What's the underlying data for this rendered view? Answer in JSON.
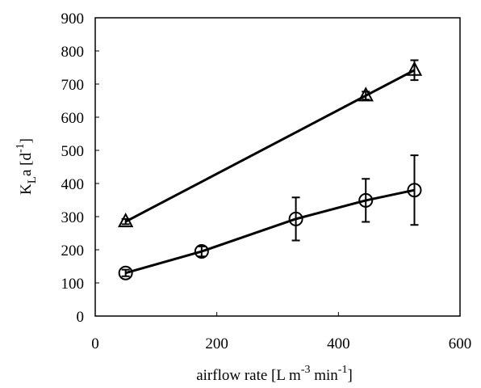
{
  "chart_data": {
    "type": "scatter",
    "x_label": {
      "text": "airflow rate [L m",
      "sup1": "-3",
      "mid": " min",
      "sup2": "-1",
      "end": "]"
    },
    "y_label": {
      "text": "K",
      "sub": "L",
      "mid": "a [d",
      "sup": "-1",
      "end": "]"
    },
    "xlim": [
      0,
      600
    ],
    "xticks": [
      0,
      200,
      400,
      600
    ],
    "ylim": [
      0,
      900
    ],
    "yticks": [
      0,
      100,
      200,
      300,
      400,
      500,
      600,
      700,
      800,
      900
    ],
    "series": [
      {
        "marker": "triangle",
        "color": "#000000",
        "x": [
          50,
          445,
          525
        ],
        "values": [
          285,
          665,
          742
        ],
        "errors": [
          8,
          12,
          30
        ]
      },
      {
        "marker": "circle",
        "color": "#000000",
        "x": [
          50,
          175,
          330,
          445,
          525
        ],
        "values": [
          130,
          195,
          293,
          349,
          380
        ],
        "errors": [
          10,
          15,
          65,
          65,
          105
        ]
      }
    ]
  }
}
